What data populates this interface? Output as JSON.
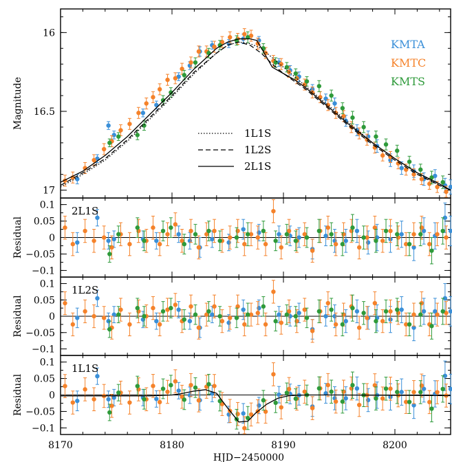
{
  "chart_data": {
    "type": "scatter",
    "xlabel": "HJD−2450000",
    "x_ticks": [
      "8170",
      "8180",
      "8190",
      "8200"
    ],
    "xlim": [
      8170,
      8205
    ],
    "colors": {
      "KMTA": "#3a8fd8",
      "KMTC": "#f5822a",
      "KMTS": "#2e9a3a"
    },
    "panels": [
      {
        "id": "lightcurve",
        "ylabel": "Magnitude",
        "ylim": [
          17.05,
          15.85
        ],
        "y_inverted": true,
        "y_ticks": [
          "16",
          "16.5",
          "17"
        ],
        "legend_series": [
          "KMTA",
          "KMTC",
          "KMTS"
        ],
        "legend_models": [
          {
            "label": "1L1S",
            "style": "dotted"
          },
          {
            "label": "1L2S",
            "style": "dashed"
          },
          {
            "label": "2L1S",
            "style": "solid"
          }
        ],
        "model_curves": [
          {
            "name": "2L1S",
            "style": "solid",
            "x": [
              8170,
              8172,
              8174,
              8176,
              8178,
              8180,
              8182,
              8184,
              8185,
              8186,
              8187,
              8187.6,
              8188.2,
              8189,
              8190,
              8191,
              8192,
              8194,
              8196,
              8198,
              8200,
              8202,
              8204,
              8205
            ],
            "y": [
              16.95,
              16.88,
              16.78,
              16.66,
              16.52,
              16.38,
              16.23,
              16.1,
              16.06,
              16.04,
              16.04,
              16.05,
              16.12,
              16.22,
              16.26,
              16.3,
              16.35,
              16.47,
              16.59,
              16.7,
              16.8,
              16.89,
              16.96,
              17.0
            ]
          },
          {
            "name": "1L2S",
            "style": "dashed",
            "x": [
              8170,
              8172,
              8174,
              8176,
              8178,
              8180,
              8182,
              8184,
              8185,
              8186,
              8187,
              8188,
              8189,
              8190,
              8192,
              8194,
              8196,
              8198,
              8200,
              8202,
              8204,
              8205
            ],
            "y": [
              16.97,
              16.89,
              16.8,
              16.68,
              16.54,
              16.4,
              16.25,
              16.13,
              16.08,
              16.06,
              16.08,
              16.13,
              16.2,
              16.26,
              16.36,
              16.48,
              16.6,
              16.71,
              16.81,
              16.9,
              16.97,
              17.0
            ]
          },
          {
            "name": "1L1S",
            "style": "dotted",
            "x": [
              8170,
              8172,
              8174,
              8176,
              8178,
              8180,
              8182,
              8184,
              8185,
              8186,
              8187,
              8188,
              8189,
              8190,
              8192,
              8194,
              8196,
              8198,
              8200,
              8202,
              8204,
              8205
            ],
            "y": [
              16.98,
              16.9,
              16.81,
              16.69,
              16.55,
              16.41,
              16.26,
              16.13,
              16.08,
              16.06,
              16.07,
              16.1,
              16.16,
              16.22,
              16.34,
              16.46,
              16.58,
              16.7,
              16.8,
              16.89,
              16.97,
              17.0
            ]
          }
        ]
      },
      {
        "id": "res-2L1S",
        "label": "2L1S",
        "ylabel": "Residual",
        "ylim": [
          -0.12,
          0.12
        ],
        "y_ticks": [
          "0.1",
          "0.05",
          "0",
          "−0.05",
          "−0.1"
        ],
        "model_curve": null
      },
      {
        "id": "res-1L2S",
        "label": "1L2S",
        "ylabel": "Residual",
        "ylim": [
          -0.12,
          0.12
        ],
        "y_ticks": [
          "0.1",
          "0.05",
          "0",
          "−0.05",
          "−0.1"
        ],
        "model_curve": null
      },
      {
        "id": "res-1L1S",
        "label": "1L1S",
        "ylabel": "Residual",
        "ylim": [
          -0.12,
          0.12
        ],
        "y_ticks": [
          "0.1",
          "0.05",
          "0",
          "−0.05",
          "−0.1"
        ],
        "model_curve": {
          "name": "1L2S−1L1S",
          "x": [
            8170,
            8178,
            8180,
            8181,
            8182,
            8183,
            8184,
            8185,
            8186,
            8186.8,
            8187.5,
            8188.5,
            8189.5,
            8190.5,
            8192,
            8195,
            8200,
            8205
          ],
          "y": [
            -0.003,
            -0.003,
            0.0,
            0.005,
            0.012,
            0.016,
            0.005,
            -0.04,
            -0.082,
            -0.08,
            -0.055,
            -0.028,
            -0.01,
            -0.002,
            0.0,
            0.0,
            -0.001,
            -0.002
          ]
        }
      }
    ],
    "series": [
      {
        "name": "KMTA",
        "x": [
          8171.5,
          8173.3,
          8174.3,
          8174.8,
          8177.4,
          8178.6,
          8180.6,
          8181.6,
          8182.5,
          8183.6,
          8185.1,
          8186.4,
          8187.8,
          8189.6,
          8190.6,
          8191.4,
          8192.6,
          8193.8,
          8194.6,
          8195.6,
          8196.6,
          8197.6,
          8198.4,
          8199.6,
          8200.6,
          8201.7,
          8202.6,
          8203.6,
          8204.5,
          8205.0
        ],
        "mag": [
          16.93,
          16.8,
          16.59,
          16.65,
          16.51,
          16.46,
          16.28,
          16.21,
          16.12,
          16.08,
          16.07,
          16.04,
          16.05,
          16.19,
          16.24,
          16.28,
          16.36,
          16.42,
          16.45,
          16.56,
          16.62,
          16.66,
          16.72,
          16.81,
          16.86,
          16.88,
          16.93,
          16.91,
          16.97,
          16.98
        ],
        "res": [
          -0.015,
          0.06,
          -0.01,
          -0.005,
          -0.005,
          -0.01,
          0.01,
          -0.01,
          -0.03,
          -0.005,
          -0.015,
          0.025,
          0.015,
          0.01,
          0.005,
          0.0,
          -0.035,
          0.005,
          -0.01,
          -0.01,
          0.02,
          -0.015,
          0.0,
          -0.005,
          0.01,
          -0.03,
          0.02,
          0.005,
          0.06,
          0.02
        ],
        "err": [
          0.03,
          0.025,
          0.025,
          0.025,
          0.025,
          0.025,
          0.025,
          0.025,
          0.03,
          0.025,
          0.025,
          0.03,
          0.025,
          0.025,
          0.03,
          0.03,
          0.03,
          0.03,
          0.035,
          0.035,
          0.035,
          0.035,
          0.04,
          0.04,
          0.04,
          0.04,
          0.04,
          0.04,
          0.045,
          0.045
        ]
      },
      {
        "name": "KMTC",
        "x": [
          8170.4,
          8171.1,
          8172.2,
          8173.0,
          8173.9,
          8174.6,
          8175.4,
          8176.2,
          8177.0,
          8177.7,
          8178.3,
          8178.9,
          8179.6,
          8180.3,
          8180.9,
          8181.7,
          8182.4,
          8183.1,
          8183.8,
          8184.5,
          8185.2,
          8185.9,
          8186.5,
          8187.1,
          8187.7,
          8188.4,
          8189.1,
          8189.8,
          8190.5,
          8191.2,
          8191.9,
          8192.6,
          8193.3,
          8194.0,
          8194.7,
          8195.4,
          8196.1,
          8196.8,
          8197.5,
          8198.2,
          8198.9,
          8199.6,
          8200.3,
          8201.0,
          8201.7,
          8202.4,
          8203.1,
          8203.8,
          8204.6
        ],
        "mag": [
          16.94,
          16.92,
          16.86,
          16.81,
          16.74,
          16.69,
          16.62,
          16.58,
          16.51,
          16.45,
          16.41,
          16.36,
          16.3,
          16.29,
          16.23,
          16.19,
          16.12,
          16.12,
          16.09,
          16.06,
          16.03,
          16.04,
          16.01,
          16.02,
          16.07,
          16.13,
          16.18,
          16.2,
          16.25,
          16.29,
          16.33,
          16.38,
          16.41,
          16.46,
          16.51,
          16.53,
          16.6,
          16.64,
          16.68,
          16.73,
          16.78,
          16.79,
          16.83,
          16.87,
          16.9,
          16.93,
          16.96,
          16.98,
          17.01
        ],
        "res": [
          0.03,
          -0.02,
          0.02,
          -0.01,
          0.0,
          -0.03,
          0.01,
          -0.02,
          0.02,
          -0.01,
          0.03,
          -0.02,
          0.01,
          0.04,
          -0.01,
          0.02,
          -0.03,
          0.01,
          0.02,
          -0.01,
          0.0,
          0.02,
          -0.02,
          0.01,
          0.0,
          -0.02,
          0.08,
          -0.03,
          0.02,
          -0.01,
          0.01,
          -0.04,
          0.02,
          0.03,
          -0.02,
          0.01,
          0.02,
          -0.03,
          0.0,
          0.03,
          -0.01,
          0.02,
          0.0,
          -0.02,
          0.01,
          0.03,
          -0.02,
          0.01,
          0.0
        ],
        "err": [
          0.035,
          0.035,
          0.035,
          0.035,
          0.035,
          0.035,
          0.035,
          0.035,
          0.035,
          0.035,
          0.035,
          0.035,
          0.035,
          0.035,
          0.035,
          0.035,
          0.035,
          0.035,
          0.035,
          0.035,
          0.035,
          0.035,
          0.035,
          0.035,
          0.035,
          0.035,
          0.035,
          0.035,
          0.035,
          0.035,
          0.035,
          0.035,
          0.035,
          0.035,
          0.035,
          0.035,
          0.035,
          0.035,
          0.035,
          0.035,
          0.035,
          0.035,
          0.035,
          0.035,
          0.035,
          0.035,
          0.035,
          0.035,
          0.035
        ]
      },
      {
        "name": "KMTS",
        "x": [
          8174.4,
          8175.2,
          8176.9,
          8177.5,
          8179.2,
          8179.9,
          8181.1,
          8182.1,
          8183.3,
          8184.3,
          8185.8,
          8186.8,
          8188.2,
          8189.3,
          8190.3,
          8191.1,
          8192.1,
          8193.2,
          8194.3,
          8195.3,
          8196.2,
          8197.2,
          8198.3,
          8199.2,
          8200.2,
          8201.3,
          8202.3,
          8203.3,
          8204.3
        ],
        "mag": [
          16.7,
          16.66,
          16.65,
          16.59,
          16.43,
          16.38,
          16.27,
          16.19,
          16.13,
          16.08,
          16.05,
          16.03,
          16.1,
          16.19,
          16.22,
          16.26,
          16.31,
          16.34,
          16.4,
          16.48,
          16.54,
          16.6,
          16.66,
          16.71,
          16.75,
          16.82,
          16.87,
          16.92,
          16.95
        ],
        "res": [
          -0.05,
          0.01,
          0.03,
          -0.01,
          0.02,
          0.03,
          -0.02,
          0.01,
          0.02,
          -0.01,
          0.0,
          0.01,
          0.02,
          -0.01,
          0.01,
          -0.01,
          0.0,
          0.02,
          0.01,
          -0.02,
          0.03,
          0.0,
          -0.01,
          0.02,
          0.01,
          -0.02,
          0.01,
          -0.04,
          0.02
        ],
        "err": [
          0.025,
          0.025,
          0.03,
          0.03,
          0.03,
          0.03,
          0.03,
          0.03,
          0.03,
          0.03,
          0.03,
          0.035,
          0.03,
          0.03,
          0.03,
          0.03,
          0.03,
          0.035,
          0.035,
          0.035,
          0.04,
          0.035,
          0.035,
          0.035,
          0.035,
          0.035,
          0.035,
          0.04,
          0.04
        ]
      }
    ]
  }
}
